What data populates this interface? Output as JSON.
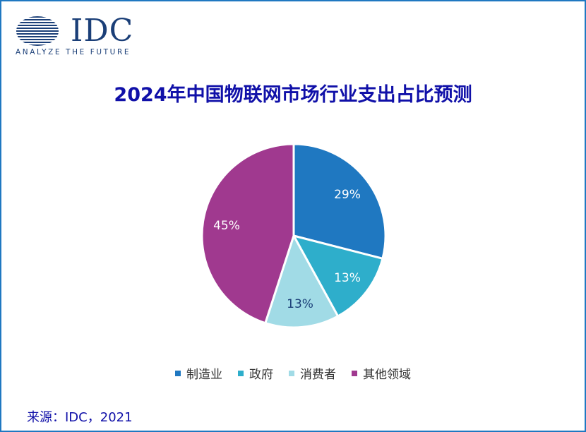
{
  "logo": {
    "name": "IDC",
    "tagline": "ANALYZE THE FUTURE"
  },
  "source": "来源：IDC，2021",
  "colors": {
    "frame": "#1f78c1",
    "title": "#1010a8"
  },
  "chart_data": {
    "type": "pie",
    "title": "2024年中国物联网市场行业支出占比预测",
    "legend_position": "bottom",
    "slices": [
      {
        "label": "制造业",
        "value": 29,
        "display": "29%",
        "color": "#1f78c1",
        "label_color": "#ffffff"
      },
      {
        "label": "政府",
        "value": 13,
        "display": "13%",
        "color": "#2eaecb",
        "label_color": "#ffffff"
      },
      {
        "label": "消费者",
        "value": 13,
        "display": "13%",
        "color": "#a1dbe6",
        "label_color": "#1b3f78"
      },
      {
        "label": "其他领域",
        "value": 45,
        "display": "45%",
        "color": "#a0398f",
        "label_color": "#ffffff"
      }
    ]
  }
}
